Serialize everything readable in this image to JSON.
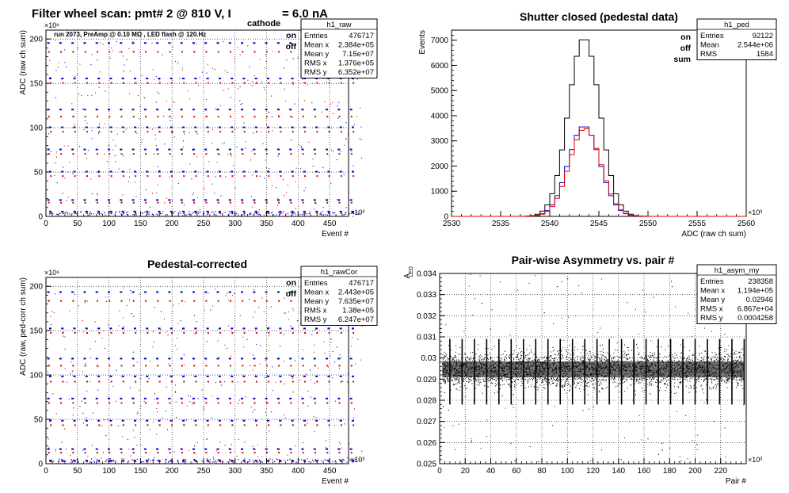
{
  "main_title": "Filter wheel scan: pmt#   2 @   810 V, I",
  "main_title_sub": "cathode",
  "main_title_tail": "= 6.0 nA",
  "colors": {
    "on": "#0000cc",
    "off": "#dd0000",
    "sum": "#000000",
    "grid": "#000000"
  },
  "legend": {
    "on": "on",
    "off": "off",
    "sum": "sum"
  },
  "chart_data": [
    {
      "id": "raw",
      "type": "scatter",
      "title": "",
      "annotation": "run 2073, PreAmp @ 0.10 MΩ , LED flash @  120.Hz",
      "xlabel": "Event #",
      "ylabel": "ADC (raw ch sum)",
      "x_exponent": "×10³",
      "y_exponent": "×10⁶",
      "xlim": [
        0,
        480
      ],
      "ylim": [
        0,
        210
      ],
      "xticks": [
        "0",
        "50",
        "100",
        "150",
        "200",
        "250",
        "300",
        "350",
        "400",
        "450"
      ],
      "yticks": [
        "0",
        "50",
        "100",
        "150",
        "200"
      ],
      "stats": {
        "name": "h1_raw",
        "rows": [
          [
            "Entries",
            "476717"
          ],
          [
            "Mean x",
            "2.384e+05"
          ],
          [
            "Mean y",
            "7.15e+07"
          ],
          [
            "RMS x",
            "1.376e+05"
          ],
          [
            "RMS y",
            "6.352e+07"
          ]
        ]
      },
      "levels_on": [
        195,
        155,
        120,
        100,
        75,
        50,
        18,
        5
      ],
      "levels_off": [
        185,
        150,
        112,
        95,
        70,
        45,
        15,
        3
      ],
      "period": 19.2
    },
    {
      "id": "ped",
      "type": "line",
      "title": "Shutter closed (pedestal data)",
      "xlabel": "ADC (raw ch sum)",
      "ylabel": "Events",
      "x_exponent": "×10³",
      "xlim": [
        2530,
        2560
      ],
      "ylim": [
        0,
        7400
      ],
      "xticks": [
        "2530",
        "2535",
        "2540",
        "2545",
        "2550",
        "2555",
        "2560"
      ],
      "yticks": [
        "0",
        "1000",
        "2000",
        "3000",
        "4000",
        "5000",
        "6000",
        "7000"
      ],
      "stats": {
        "name": "h1_ped",
        "rows": [
          [
            "Entries",
            "92122"
          ],
          [
            "Mean",
            "2.544e+06"
          ],
          [
            "RMS",
            "1584"
          ]
        ]
      },
      "series": [
        {
          "name": "sum",
          "peak": 7100,
          "mean": 2543.5,
          "sigma": 1.6
        },
        {
          "name": "on",
          "peak": 3600,
          "mean": 2543.5,
          "sigma": 1.6
        },
        {
          "name": "off",
          "peak": 3500,
          "mean": 2543.6,
          "sigma": 1.6
        }
      ]
    },
    {
      "id": "rawCor",
      "type": "scatter",
      "title": "Pedestal-corrected",
      "xlabel": "Event #",
      "ylabel": "ADC (raw, ped-corr ch sum)",
      "x_exponent": "×10³",
      "y_exponent": "×10⁶",
      "xlim": [
        0,
        480
      ],
      "ylim": [
        0,
        210
      ],
      "xticks": [
        "0",
        "50",
        "100",
        "150",
        "200",
        "250",
        "300",
        "350",
        "400",
        "450"
      ],
      "yticks": [
        "0",
        "50",
        "100",
        "150",
        "200"
      ],
      "stats": {
        "name": "h1_rawCor",
        "rows": [
          [
            "Entries",
            "476717"
          ],
          [
            "Mean x",
            "2.443e+05"
          ],
          [
            "Mean y",
            "7.635e+07"
          ],
          [
            "RMS x",
            "1.38e+05"
          ],
          [
            "RMS y",
            "6.247e+07"
          ]
        ]
      },
      "levels_on": [
        193,
        152,
        118,
        98,
        73,
        48,
        16,
        3
      ],
      "levels_off": [
        183,
        147,
        110,
        92,
        68,
        43,
        12,
        2
      ],
      "period": 19.2
    },
    {
      "id": "asym",
      "type": "scatter",
      "title": "Pair-wise Asymmetry vs. pair #",
      "xlabel": "Pair #",
      "ylabel": "A",
      "ylabel_sub": "LED",
      "x_exponent": "×10³",
      "xlim": [
        0,
        240
      ],
      "ylim": [
        0.025,
        0.034
      ],
      "xticks": [
        "0",
        "20",
        "40",
        "60",
        "80",
        "100",
        "120",
        "140",
        "160",
        "180",
        "200",
        "220"
      ],
      "yticks": [
        "0.025",
        "0.026",
        "0.027",
        "0.028",
        "0.029",
        "0.03",
        "0.031",
        "0.032",
        "0.033",
        "0.034"
      ],
      "stats": {
        "name": "h1_asym_my",
        "rows": [
          [
            "Entries",
            "238358"
          ],
          [
            "Mean x",
            "1.194e+05"
          ],
          [
            "Mean y",
            "0.02946"
          ],
          [
            "RMS x",
            "6.867e+04"
          ],
          [
            "RMS y",
            "0.0004258"
          ]
        ]
      },
      "center": 0.02946,
      "spread": 0.00042,
      "spike_period": 9.6
    }
  ]
}
